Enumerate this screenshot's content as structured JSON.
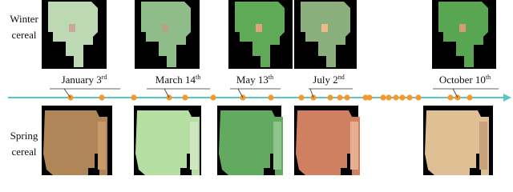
{
  "rows": [
    {
      "label_lines": [
        "Winter",
        "cereal"
      ]
    },
    {
      "label_lines": [
        "Spring",
        "cereal"
      ]
    }
  ],
  "dates": [
    {
      "text": "January 3",
      "sup": "rd"
    },
    {
      "text": "March 14",
      "sup": "th"
    },
    {
      "text": "May 13",
      "sup": "th"
    },
    {
      "text": "July 2",
      "sup": "nd"
    },
    {
      "text": "October 10",
      "sup": "th"
    }
  ]
}
